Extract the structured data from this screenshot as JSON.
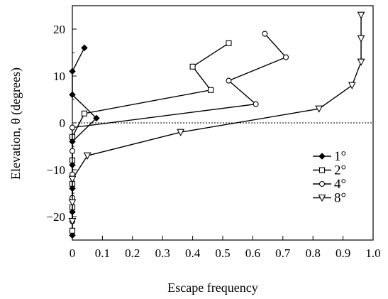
{
  "chart_data": {
    "type": "line",
    "title": "",
    "xlabel": "Escape frequency",
    "ylabel": "Elevation, θ (degrees)",
    "xlim": [
      0,
      1.0
    ],
    "ylim": [
      -25,
      25
    ],
    "x_ticks": [
      0,
      0.1,
      0.2,
      0.3,
      0.4,
      0.5,
      0.6,
      0.7,
      0.8,
      0.9,
      1.0
    ],
    "x_tick_labels": [
      "0",
      "0.1",
      "0.2",
      "0.3",
      "0.4",
      "0.5",
      "0.6",
      "0.7",
      "0.8",
      "0.9",
      "1.0"
    ],
    "y_ticks": [
      -20,
      -10,
      0,
      10,
      20
    ],
    "y_tick_labels": [
      "−20",
      "−10",
      "0",
      "10",
      "20"
    ],
    "reference_line": {
      "y": 0,
      "style": "dotted"
    },
    "grid": false,
    "legend_position": "lower-right",
    "series": [
      {
        "name": "1°",
        "marker": "diamond",
        "points": [
          [
            0.04,
            16
          ],
          [
            0.0,
            11
          ],
          [
            0.0,
            6
          ],
          [
            0.08,
            1
          ],
          [
            0.0,
            -4
          ],
          [
            0.0,
            -9
          ],
          [
            0.0,
            -14
          ],
          [
            0.0,
            -19
          ],
          [
            0.0,
            -24
          ]
        ]
      },
      {
        "name": "2°",
        "marker": "square",
        "points": [
          [
            0.52,
            17
          ],
          [
            0.4,
            12
          ],
          [
            0.46,
            7
          ],
          [
            0.04,
            2
          ],
          [
            0.0,
            -3
          ],
          [
            0.0,
            -8
          ],
          [
            0.0,
            -13
          ],
          [
            0.0,
            -18
          ],
          [
            0.0,
            -23
          ]
        ]
      },
      {
        "name": "4°",
        "marker": "circle",
        "points": [
          [
            0.64,
            19
          ],
          [
            0.71,
            14
          ],
          [
            0.52,
            9
          ],
          [
            0.61,
            4
          ],
          [
            0.0,
            -1
          ],
          [
            0.0,
            -6
          ],
          [
            0.0,
            -11
          ],
          [
            0.0,
            -16
          ],
          [
            0.0,
            -21
          ]
        ]
      },
      {
        "name": "8°",
        "marker": "triangle-down",
        "points": [
          [
            0.96,
            23
          ],
          [
            0.96,
            18
          ],
          [
            0.96,
            13
          ],
          [
            0.93,
            8
          ],
          [
            0.82,
            3
          ],
          [
            0.36,
            -2
          ],
          [
            0.05,
            -7
          ],
          [
            0.0,
            -12
          ],
          [
            0.0,
            -17
          ],
          [
            0.0,
            -21
          ]
        ]
      }
    ]
  }
}
